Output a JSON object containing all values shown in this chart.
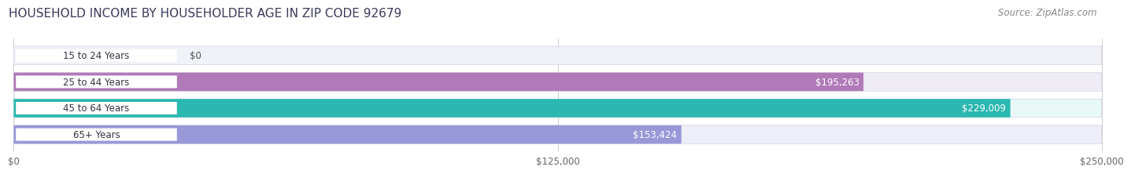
{
  "title": "HOUSEHOLD INCOME BY HOUSEHOLDER AGE IN ZIP CODE 92679",
  "source": "Source: ZipAtlas.com",
  "categories": [
    "15 to 24 Years",
    "25 to 44 Years",
    "45 to 64 Years",
    "65+ Years"
  ],
  "values": [
    0,
    195263,
    229009,
    153424
  ],
  "labels": [
    "$0",
    "$195,263",
    "$229,009",
    "$153,424"
  ],
  "bar_colors": [
    "#a8b8d8",
    "#b07ab8",
    "#2ab8b0",
    "#9898d8"
  ],
  "bar_bg_colors": [
    "#f0f2f8",
    "#f0ecf5",
    "#e8f8f7",
    "#eeeef8"
  ],
  "x_max": 250000,
  "x_ticks": [
    0,
    125000,
    250000
  ],
  "x_tick_labels": [
    "$0",
    "$125,000",
    "$250,000"
  ],
  "title_fontsize": 11,
  "source_fontsize": 8.5,
  "label_fontsize": 8.5,
  "category_fontsize": 8.5,
  "background_color": "#ffffff"
}
